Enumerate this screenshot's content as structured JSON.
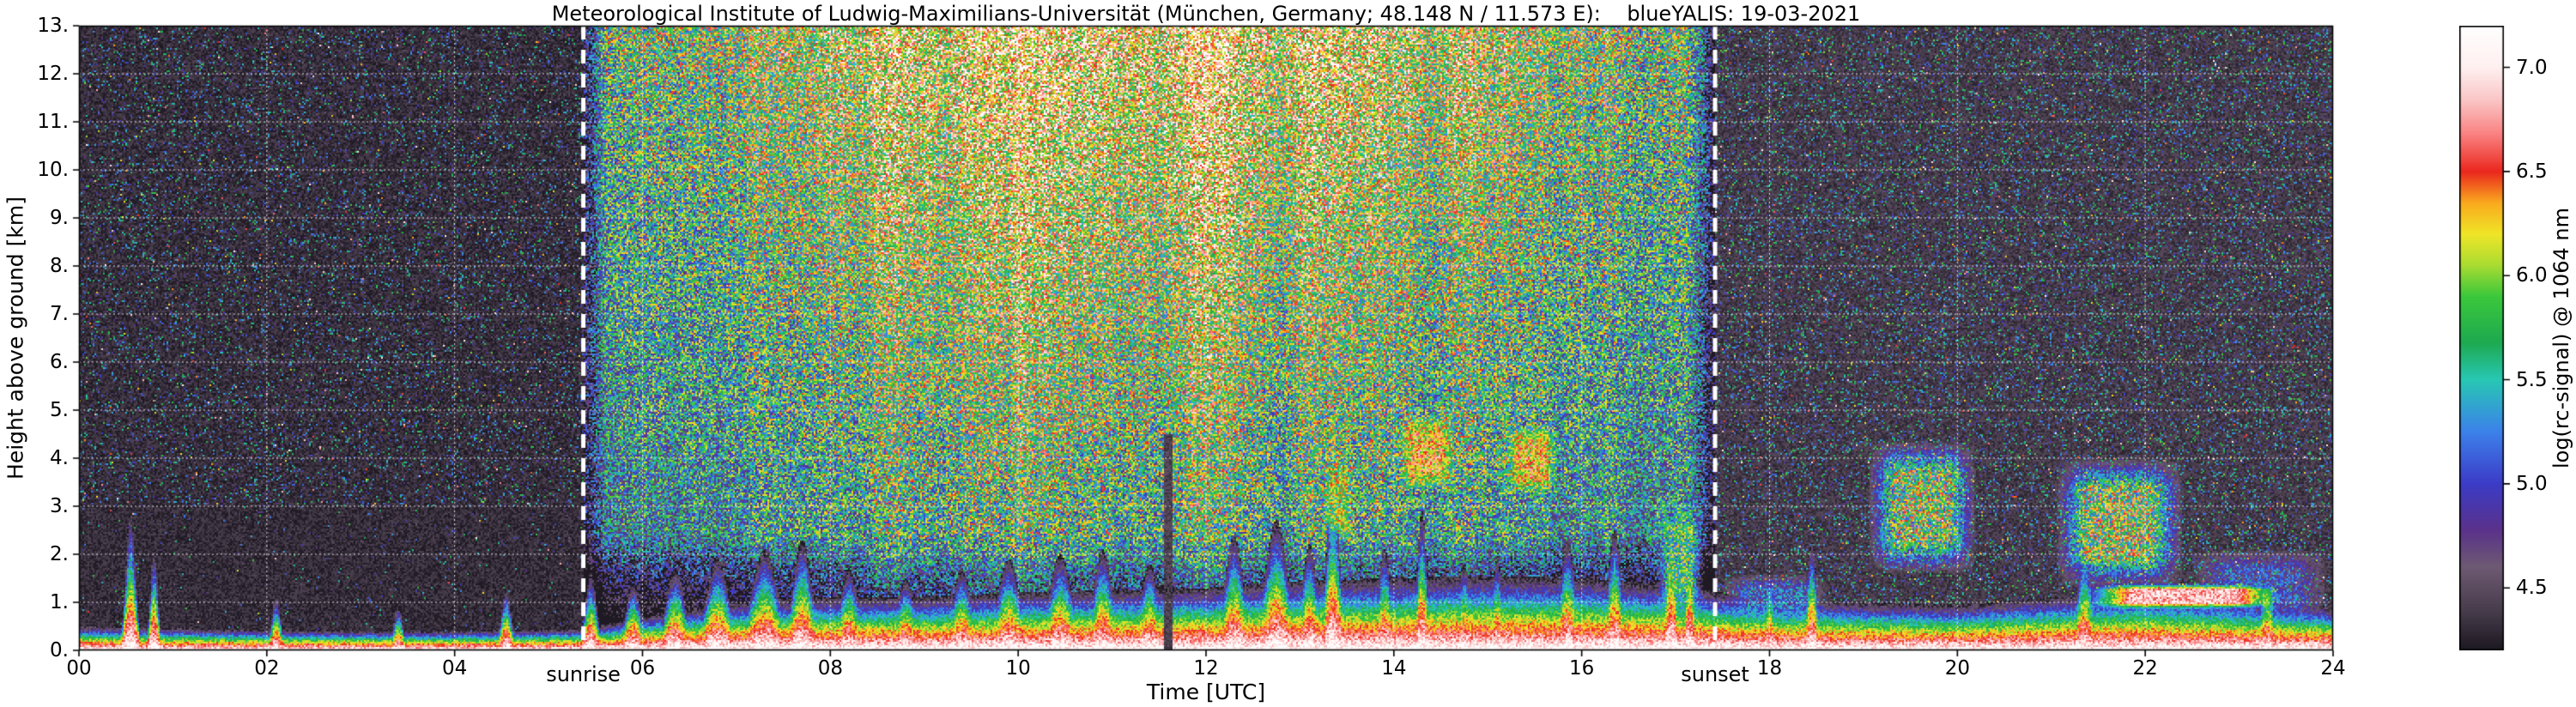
{
  "figure": {
    "background": "#ffffff"
  },
  "chart_data": {
    "type": "heatmap",
    "title": "Meteorological Institute of Ludwig-Maximilians-Universität (München, Germany; 48.148 N / 11.573 E):    blueYALIS: 19-03-2021",
    "institute": "Meteorological Institute of Ludwig-Maximilians-Universität",
    "location": "München, Germany",
    "coordinates": "48.148 N / 11.573 E",
    "instrument": "blueYALIS",
    "date": "19-03-2021",
    "xlabel": "Time [UTC]",
    "ylabel": "Height above ground [km]",
    "xlim": [
      0,
      24
    ],
    "ylim": [
      0,
      13
    ],
    "x_ticks": {
      "values": [
        0,
        2,
        4,
        6,
        8,
        10,
        12,
        14,
        16,
        18,
        20,
        22,
        24
      ],
      "labels": [
        "00",
        "02",
        "04",
        "06",
        "08",
        "10",
        "12",
        "14",
        "16",
        "18",
        "20",
        "22",
        "24"
      ]
    },
    "y_ticks": {
      "values": [
        0,
        1,
        2,
        3,
        4,
        5,
        6,
        7,
        8,
        9,
        10,
        11,
        12,
        13
      ],
      "labels": [
        "0.",
        "1.",
        "2.",
        "3.",
        "4.",
        "5.",
        "6.",
        "7.",
        "8.",
        "9.",
        "10.",
        "11.",
        "12.",
        "13."
      ]
    },
    "grid": {
      "show": true,
      "color": "#ffffff",
      "style": "dotted"
    },
    "colorbar": {
      "label": "log(rc-signal) @ 1064 nm",
      "ticks": [
        4.5,
        5.0,
        5.5,
        6.0,
        6.5,
        7.0
      ],
      "tick_labels": [
        "4.5",
        "5.0",
        "5.5",
        "6.0",
        "6.5",
        "7.0"
      ],
      "range": [
        4.2,
        7.2
      ],
      "stops": [
        {
          "v": 4.2,
          "color": "#1e1923"
        },
        {
          "v": 4.4,
          "color": "#4a3f4e"
        },
        {
          "v": 4.6,
          "color": "#6e5a73"
        },
        {
          "v": 4.78,
          "color": "#5a328c"
        },
        {
          "v": 5.0,
          "color": "#3c3cc8"
        },
        {
          "v": 5.25,
          "color": "#3c82eb"
        },
        {
          "v": 5.5,
          "color": "#28c8b4"
        },
        {
          "v": 5.68,
          "color": "#1eaa50"
        },
        {
          "v": 5.9,
          "color": "#3cc83c"
        },
        {
          "v": 6.05,
          "color": "#aadc32"
        },
        {
          "v": 6.2,
          "color": "#f0e628"
        },
        {
          "v": 6.35,
          "color": "#faaa1e"
        },
        {
          "v": 6.5,
          "color": "#eb281e"
        },
        {
          "v": 6.68,
          "color": "#fa8282"
        },
        {
          "v": 6.85,
          "color": "#fac8c8"
        },
        {
          "v": 7.0,
          "color": "#fff0f0"
        },
        {
          "v": 7.2,
          "color": "#ffffff"
        }
      ]
    },
    "annotations": [
      {
        "label": "sunrise",
        "time_utc": 5.37,
        "style": "thick white dashed vertical line"
      },
      {
        "label": "sunset",
        "time_utc": 17.42,
        "style": "thick white dashed vertical line"
      }
    ],
    "summary": "Lidar range-corrected signal quicklook: dark low-background periods before sunrise and after sunset; strong speckled daytime solar background (greenish near terminators, orange-brown and white at high altitude around midday); shallow nocturnal aerosol layer (~0.4 km) growing into a convective boundary layer up to ~1.5-2 km with rainbow-colored plumes; mid-level clouds at 3.3-4.9 km between ~13:15 and ~15:45 UTC; cloud/aerosol layers 1.3-4.3 km between ~19:00-22:30 UTC; bright white layer top ~1.1 km from ~21:20-23:30 UTC.",
    "features": {
      "solar_background": {
        "sunrise_utc": 5.37,
        "sunset_utc": 17.42,
        "midday_peak_log_signal_at_13km": 6.6
      },
      "boundary_layer_depth_km": {
        "format": "[time_utc, depth_km]",
        "items": [
          [
            0,
            0.5
          ],
          [
            2,
            0.42
          ],
          [
            4,
            0.4
          ],
          [
            5.4,
            0.45
          ],
          [
            6,
            0.7
          ],
          [
            7,
            1.0
          ],
          [
            8,
            1.1
          ],
          [
            9,
            1.1
          ],
          [
            10,
            1.2
          ],
          [
            11,
            1.25
          ],
          [
            12,
            1.3
          ],
          [
            13,
            1.45
          ],
          [
            14,
            1.5
          ],
          [
            15,
            1.55
          ],
          [
            16,
            1.5
          ],
          [
            17,
            1.35
          ],
          [
            17.8,
            1.1
          ],
          [
            19,
            1.0
          ],
          [
            20,
            0.95
          ],
          [
            21,
            1.1
          ],
          [
            22,
            1.2
          ],
          [
            23,
            1.05
          ],
          [
            24,
            0.9
          ]
        ]
      },
      "aerosol_plumes": {
        "format": "[time_utc, sigma_hours, top_km]",
        "items": [
          [
            0.55,
            0.05,
            2.9
          ],
          [
            0.8,
            0.04,
            2.1
          ],
          [
            2.1,
            0.05,
            1.1
          ],
          [
            3.4,
            0.05,
            0.9
          ],
          [
            4.55,
            0.05,
            1.3
          ],
          [
            5.45,
            0.06,
            1.6
          ],
          [
            5.9,
            0.08,
            1.4
          ],
          [
            6.35,
            0.1,
            1.7
          ],
          [
            6.8,
            0.12,
            1.9
          ],
          [
            7.3,
            0.14,
            2.1
          ],
          [
            7.7,
            0.1,
            2.3
          ],
          [
            8.2,
            0.1,
            1.7
          ],
          [
            8.8,
            0.1,
            1.5
          ],
          [
            9.4,
            0.1,
            1.7
          ],
          [
            9.9,
            0.12,
            1.9
          ],
          [
            10.45,
            0.12,
            2.0
          ],
          [
            10.9,
            0.1,
            2.1
          ],
          [
            11.4,
            0.1,
            1.8
          ],
          [
            12.3,
            0.1,
            2.4
          ],
          [
            12.75,
            0.12,
            2.7
          ],
          [
            13.1,
            0.08,
            2.2
          ],
          [
            13.35,
            0.07,
            3.4
          ],
          [
            13.9,
            0.07,
            2.1
          ],
          [
            14.3,
            0.05,
            2.9
          ],
          [
            14.75,
            0.07,
            1.8
          ],
          [
            15.1,
            0.06,
            1.9
          ],
          [
            15.85,
            0.08,
            2.3
          ],
          [
            16.35,
            0.07,
            2.5
          ],
          [
            16.95,
            0.05,
            3.0
          ],
          [
            17.15,
            0.04,
            2.7
          ],
          [
            18.0,
            0.05,
            1.6
          ],
          [
            18.45,
            0.05,
            2.3
          ],
          [
            21.35,
            0.08,
            2.0
          ],
          [
            23.3,
            0.07,
            1.6
          ]
        ]
      },
      "cloud_bands": {
        "format": "[t0_utc, t1_utc, h0_km, h1_km, mean_log_signal, spread]",
        "items": [
          [
            13.25,
            13.55,
            2.2,
            4.0,
            5.9,
            0.6
          ],
          [
            14.05,
            14.65,
            3.3,
            4.9,
            6.35,
            0.55
          ],
          [
            15.2,
            15.75,
            3.2,
            4.7,
            6.3,
            0.55
          ],
          [
            16.8,
            17.3,
            0.6,
            3.2,
            5.7,
            0.7
          ],
          [
            17.5,
            18.6,
            0.3,
            1.6,
            5.1,
            0.5
          ],
          [
            19.05,
            20.2,
            1.6,
            4.35,
            5.9,
            0.85
          ],
          [
            21.05,
            22.4,
            1.3,
            4.0,
            5.95,
            0.85
          ],
          [
            21.3,
            23.55,
            0.85,
            1.4,
            6.85,
            0.3
          ],
          [
            22.5,
            23.95,
            0.5,
            2.1,
            4.95,
            0.45
          ]
        ]
      },
      "dark_gaps": {
        "format": "[time_utc, half_width_hours, up_to_km]",
        "items": [
          [
            11.6,
            0.05,
            4.5
          ]
        ]
      }
    }
  }
}
